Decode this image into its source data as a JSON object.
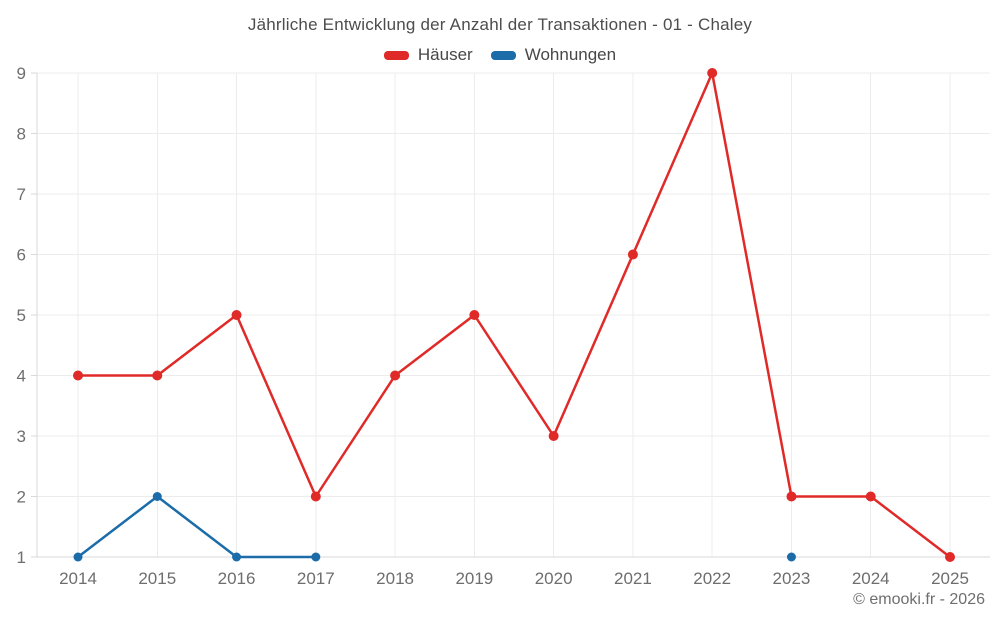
{
  "chart_data": {
    "type": "line",
    "title": "Jährliche Entwicklung der Anzahl der Transaktionen - 01 - Chaley",
    "footer": "© emooki.fr - 2026",
    "categories": [
      "2014",
      "2015",
      "2016",
      "2017",
      "2018",
      "2019",
      "2020",
      "2021",
      "2022",
      "2023",
      "2024",
      "2025"
    ],
    "series": [
      {
        "name": "Häuser",
        "color": "#e02a28",
        "values": [
          4,
          4,
          5,
          2,
          4,
          5,
          3,
          6,
          9,
          2,
          2,
          1
        ]
      },
      {
        "name": "Wohnungen",
        "color": "#1b6ca8",
        "values": [
          1,
          2,
          1,
          1,
          null,
          null,
          null,
          null,
          null,
          1,
          null,
          null
        ]
      }
    ],
    "yticks": [
      1,
      2,
      3,
      4,
      5,
      6,
      7,
      8,
      9
    ],
    "ylim": [
      1,
      9
    ],
    "xlabel": "",
    "ylabel": "",
    "grid": true,
    "legend_position": "top",
    "colors": {
      "grid": "#ececec",
      "axis": "#d9d9d9",
      "tick_label": "#6e6e6e",
      "title_text": "#4d4d4d",
      "legend_text": "#474747"
    }
  }
}
